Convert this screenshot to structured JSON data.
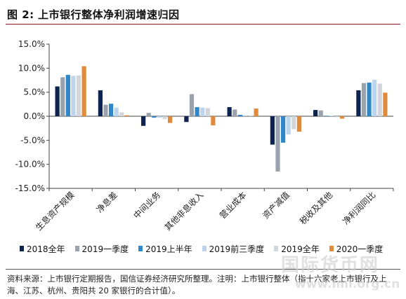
{
  "header": {
    "label": "图 2:",
    "title": "上市银行整体净利润增速归因"
  },
  "chart_data": {
    "type": "bar",
    "title": "",
    "xlabel": "",
    "ylabel": "",
    "ylim": [
      -15,
      15
    ],
    "yticks": [
      "15.0%",
      "10.0%",
      "5.0%",
      "0.0%",
      "-5.0%",
      "-10.0%",
      "-15.0%"
    ],
    "categories": [
      "生息资产规模",
      "净息差",
      "中间业务",
      "其他非息收入",
      "营业成本",
      "资产减值",
      "税收及其他",
      "净利润同比"
    ],
    "series": [
      {
        "name": "2018全年",
        "color": "#0d2350",
        "values": [
          6.2,
          5.4,
          -2.0,
          -1.2,
          1.9,
          -5.9,
          1.3,
          5.4
        ]
      },
      {
        "name": "2019一季度",
        "color": "#9aa3ad",
        "values": [
          8.1,
          2.4,
          0.7,
          4.6,
          1.4,
          -11.5,
          1.2,
          6.9
        ]
      },
      {
        "name": "2019上半年",
        "color": "#2f86c9",
        "values": [
          8.6,
          2.6,
          -0.3,
          1.9,
          0.3,
          -5.5,
          0.1,
          7.0
        ]
      },
      {
        "name": "2019前三季度",
        "color": "#bcd4ec",
        "values": [
          8.4,
          1.8,
          -0.3,
          1.8,
          0.2,
          -3.8,
          0.1,
          7.6
        ]
      },
      {
        "name": "2019全年",
        "color": "#d2d5d9",
        "values": [
          8.5,
          0.8,
          -0.6,
          1.7,
          0.2,
          -2.7,
          -0.2,
          6.8
        ]
      },
      {
        "name": "2020一季度",
        "color": "#e08a3c",
        "values": [
          10.4,
          0.2,
          -1.4,
          -1.9,
          1.6,
          -3.2,
          -0.5,
          4.9
        ]
      }
    ],
    "grid": false,
    "legend": "bottom"
  },
  "source": {
    "text": "资料来源：上市银行定期报告，国信证券经济研究所整理。注明：上市银行整体（指十六家老上市银行及上海、江苏、杭州、贵阳共 20 家银行的合计值）。"
  },
  "watermark": {
    "cn": "国际货币网",
    "url": "www.imi.org.cn"
  }
}
